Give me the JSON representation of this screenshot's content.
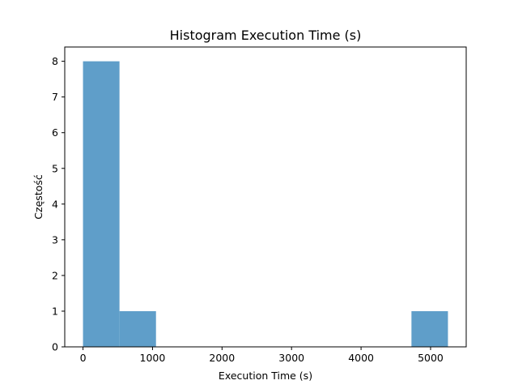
{
  "chart_data": {
    "type": "bar",
    "title": "Histogram Execution Time (s)",
    "xlabel": "Execution Time (s)",
    "ylabel": "Częstość",
    "bins": [
      {
        "start": 0,
        "end": 525,
        "count": 8
      },
      {
        "start": 525,
        "end": 1050,
        "count": 1
      },
      {
        "start": 1050,
        "end": 1575,
        "count": 0
      },
      {
        "start": 1575,
        "end": 2100,
        "count": 0
      },
      {
        "start": 2100,
        "end": 2625,
        "count": 0
      },
      {
        "start": 2625,
        "end": 3150,
        "count": 0
      },
      {
        "start": 3150,
        "end": 3675,
        "count": 0
      },
      {
        "start": 3675,
        "end": 4200,
        "count": 0
      },
      {
        "start": 4200,
        "end": 4725,
        "count": 0
      },
      {
        "start": 4725,
        "end": 5250,
        "count": 1
      }
    ],
    "xlim": [
      -262.5,
      5512.5
    ],
    "ylim": [
      0,
      8.4
    ],
    "xticks": [
      0,
      1000,
      2000,
      3000,
      4000,
      5000
    ],
    "yticks": [
      0,
      1,
      2,
      3,
      4,
      5,
      6,
      7,
      8
    ],
    "bar_color": "#5f9ec9",
    "grid": false,
    "legend": "none"
  }
}
